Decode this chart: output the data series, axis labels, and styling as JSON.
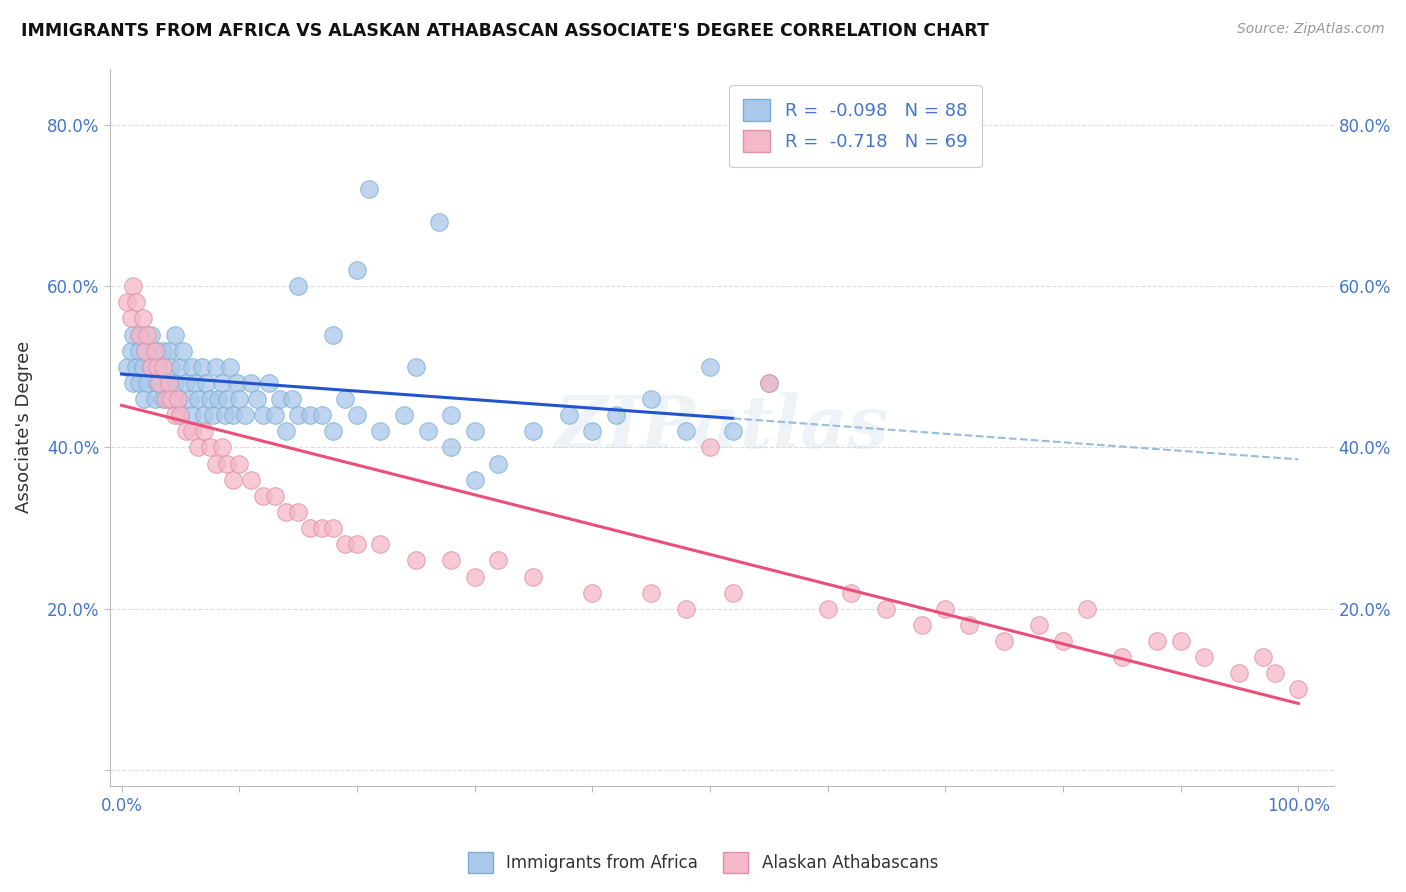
{
  "title": "IMMIGRANTS FROM AFRICA VS ALASKAN ATHABASCAN ASSOCIATE'S DEGREE CORRELATION CHART",
  "source_text": "Source: ZipAtlas.com",
  "ylabel": "Associate's Degree",
  "blue_color": "#aac8ea",
  "blue_edge_color": "#7aafd4",
  "pink_color": "#f4b8c8",
  "pink_edge_color": "#e090a8",
  "trend_blue": "#2255cc",
  "trend_pink": "#e8507a",
  "trend_dashed_color": "#99bbdd",
  "watermark": "ZIPatlas",
  "blue_x": [
    0.005,
    0.008,
    0.01,
    0.01,
    0.012,
    0.015,
    0.015,
    0.016,
    0.018,
    0.019,
    0.02,
    0.022,
    0.025,
    0.025,
    0.028,
    0.03,
    0.03,
    0.032,
    0.035,
    0.035,
    0.038,
    0.04,
    0.04,
    0.042,
    0.045,
    0.045,
    0.048,
    0.05,
    0.05,
    0.052,
    0.055,
    0.058,
    0.06,
    0.06,
    0.062,
    0.065,
    0.068,
    0.07,
    0.072,
    0.075,
    0.078,
    0.08,
    0.082,
    0.085,
    0.088,
    0.09,
    0.092,
    0.095,
    0.098,
    0.1,
    0.105,
    0.11,
    0.115,
    0.12,
    0.125,
    0.13,
    0.135,
    0.14,
    0.145,
    0.15,
    0.16,
    0.17,
    0.18,
    0.19,
    0.2,
    0.22,
    0.24,
    0.26,
    0.28,
    0.3,
    0.21,
    0.27,
    0.2,
    0.15,
    0.35,
    0.42,
    0.48,
    0.5,
    0.3,
    0.38,
    0.25,
    0.18,
    0.28,
    0.32,
    0.4,
    0.45,
    0.52,
    0.55
  ],
  "blue_y": [
    0.5,
    0.52,
    0.48,
    0.54,
    0.5,
    0.52,
    0.48,
    0.54,
    0.5,
    0.46,
    0.52,
    0.48,
    0.54,
    0.5,
    0.46,
    0.52,
    0.48,
    0.5,
    0.52,
    0.46,
    0.48,
    0.52,
    0.46,
    0.5,
    0.48,
    0.54,
    0.46,
    0.5,
    0.44,
    0.52,
    0.48,
    0.46,
    0.5,
    0.44,
    0.48,
    0.46,
    0.5,
    0.44,
    0.48,
    0.46,
    0.44,
    0.5,
    0.46,
    0.48,
    0.44,
    0.46,
    0.5,
    0.44,
    0.48,
    0.46,
    0.44,
    0.48,
    0.46,
    0.44,
    0.48,
    0.44,
    0.46,
    0.42,
    0.46,
    0.44,
    0.44,
    0.44,
    0.42,
    0.46,
    0.44,
    0.42,
    0.44,
    0.42,
    0.44,
    0.42,
    0.72,
    0.68,
    0.62,
    0.6,
    0.42,
    0.44,
    0.42,
    0.5,
    0.36,
    0.44,
    0.5,
    0.54,
    0.4,
    0.38,
    0.42,
    0.46,
    0.42,
    0.48
  ],
  "pink_x": [
    0.005,
    0.008,
    0.01,
    0.012,
    0.015,
    0.018,
    0.02,
    0.022,
    0.025,
    0.028,
    0.03,
    0.032,
    0.035,
    0.038,
    0.04,
    0.042,
    0.045,
    0.048,
    0.05,
    0.055,
    0.06,
    0.065,
    0.07,
    0.075,
    0.08,
    0.085,
    0.09,
    0.095,
    0.1,
    0.11,
    0.12,
    0.13,
    0.14,
    0.15,
    0.16,
    0.17,
    0.18,
    0.19,
    0.2,
    0.22,
    0.25,
    0.28,
    0.3,
    0.32,
    0.35,
    0.4,
    0.45,
    0.48,
    0.52,
    0.55,
    0.6,
    0.62,
    0.65,
    0.68,
    0.7,
    0.72,
    0.75,
    0.78,
    0.8,
    0.82,
    0.85,
    0.88,
    0.9,
    0.92,
    0.95,
    0.97,
    0.98,
    1.0,
    0.5
  ],
  "pink_y": [
    0.58,
    0.56,
    0.6,
    0.58,
    0.54,
    0.56,
    0.52,
    0.54,
    0.5,
    0.52,
    0.5,
    0.48,
    0.5,
    0.46,
    0.48,
    0.46,
    0.44,
    0.46,
    0.44,
    0.42,
    0.42,
    0.4,
    0.42,
    0.4,
    0.38,
    0.4,
    0.38,
    0.36,
    0.38,
    0.36,
    0.34,
    0.34,
    0.32,
    0.32,
    0.3,
    0.3,
    0.3,
    0.28,
    0.28,
    0.28,
    0.26,
    0.26,
    0.24,
    0.26,
    0.24,
    0.22,
    0.22,
    0.2,
    0.22,
    0.48,
    0.2,
    0.22,
    0.2,
    0.18,
    0.2,
    0.18,
    0.16,
    0.18,
    0.16,
    0.2,
    0.14,
    0.16,
    0.16,
    0.14,
    0.12,
    0.14,
    0.12,
    0.1,
    0.4
  ]
}
